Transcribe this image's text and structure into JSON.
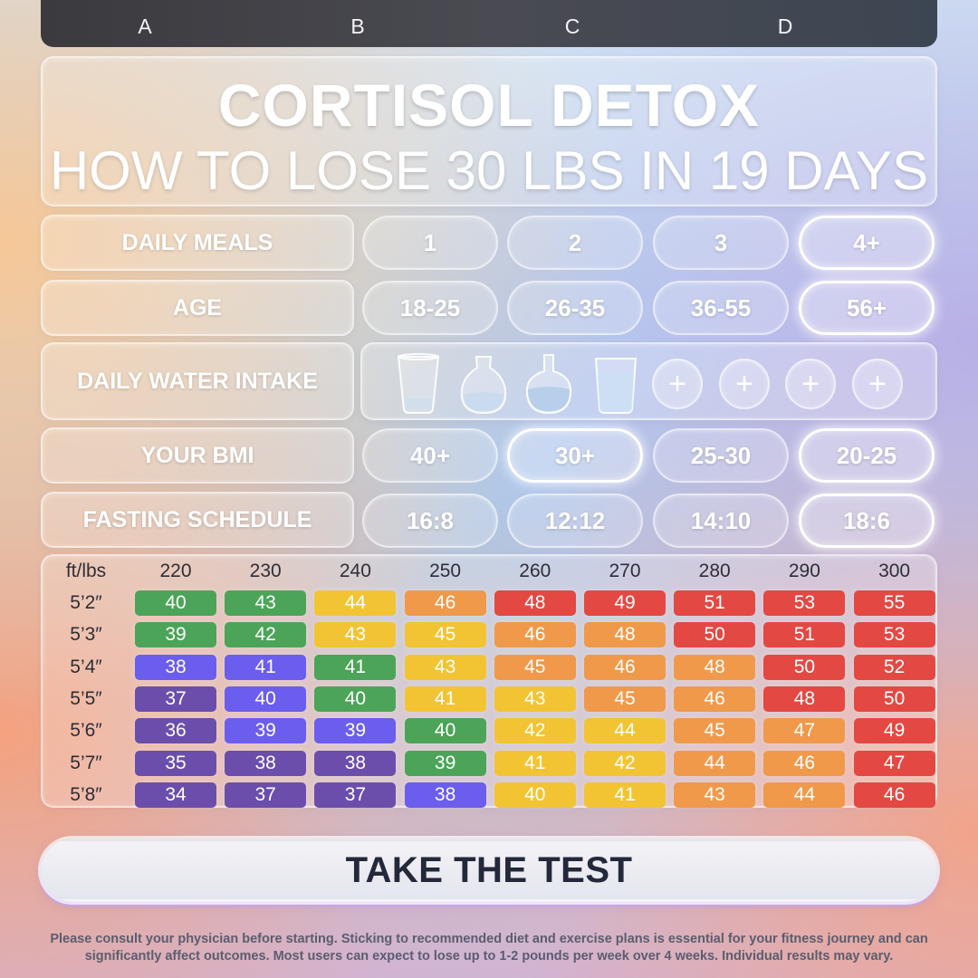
{
  "column_letters": [
    "A",
    "B",
    "C",
    "D"
  ],
  "title": {
    "main": "CORTISOL DETOX",
    "sub": "HOW TO LOSE 30 LBS IN 19 DAYS"
  },
  "rows": {
    "daily_meals": {
      "label": "DAILY MEALS",
      "options": [
        "1",
        "2",
        "3",
        "4+"
      ],
      "selected": "4+"
    },
    "age": {
      "label": "AGE",
      "options": [
        "18-25",
        "26-35",
        "36-55",
        "56+"
      ],
      "selected": "56+"
    },
    "water": {
      "label": "DAILY WATER INTAKE",
      "vessels": [
        "empty-glass-icon",
        "carafe-icon",
        "round-flask-icon",
        "water-glass-icon"
      ],
      "add_buttons": [
        "+",
        "+",
        "+",
        "+"
      ]
    },
    "bmi": {
      "label": "YOUR BMI",
      "options": [
        "40+",
        "30+",
        "25-30",
        "20-25"
      ],
      "selected": [
        "30+",
        "20-25"
      ]
    },
    "fasting": {
      "label": "FASTING SCHEDULE",
      "options": [
        "16:8",
        "12:12",
        "14:10",
        "18:6"
      ],
      "selected": "18:6"
    }
  },
  "bmi_table": {
    "corner": "ft/lbs",
    "weights": [
      "220",
      "230",
      "240",
      "250",
      "260",
      "270",
      "280",
      "290",
      "300"
    ],
    "heights": [
      "5’2″",
      "5’3″",
      "5’4″",
      "5’5″",
      "5’6″",
      "5’7″",
      "5’8″"
    ],
    "values": [
      [
        "40",
        "43",
        "44",
        "46",
        "48",
        "49",
        "51",
        "53",
        "55"
      ],
      [
        "39",
        "42",
        "43",
        "45",
        "46",
        "48",
        "50",
        "51",
        "53"
      ],
      [
        "38",
        "41",
        "41",
        "43",
        "45",
        "46",
        "48",
        "50",
        "52"
      ],
      [
        "37",
        "40",
        "40",
        "41",
        "43",
        "45",
        "46",
        "48",
        "50"
      ],
      [
        "36",
        "39",
        "39",
        "40",
        "42",
        "44",
        "45",
        "47",
        "49"
      ],
      [
        "35",
        "38",
        "38",
        "39",
        "41",
        "42",
        "44",
        "46",
        "47"
      ],
      [
        "34",
        "37",
        "37",
        "38",
        "40",
        "41",
        "43",
        "44",
        "46"
      ]
    ],
    "colors": {
      "deep_purple": "#6a4fa8",
      "indigo": "#6b5ee8",
      "green": "#4fa35a",
      "yellow": "#f0c43a",
      "orange": "#ec9a4e",
      "red": "#de4a44"
    },
    "color_grid": [
      [
        "green",
        "green",
        "yellow",
        "orange",
        "red",
        "red",
        "red",
        "red",
        "red"
      ],
      [
        "green",
        "green",
        "yellow",
        "yellow",
        "orange",
        "orange",
        "red",
        "red",
        "red"
      ],
      [
        "indigo",
        "indigo",
        "green",
        "yellow",
        "orange",
        "orange",
        "orange",
        "red",
        "red"
      ],
      [
        "deep_purple",
        "indigo",
        "green",
        "yellow",
        "yellow",
        "orange",
        "orange",
        "red",
        "red"
      ],
      [
        "deep_purple",
        "indigo",
        "indigo",
        "green",
        "yellow",
        "yellow",
        "orange",
        "orange",
        "red"
      ],
      [
        "deep_purple",
        "deep_purple",
        "deep_purple",
        "green",
        "yellow",
        "yellow",
        "orange",
        "orange",
        "red"
      ],
      [
        "deep_purple",
        "deep_purple",
        "deep_purple",
        "indigo",
        "yellow",
        "yellow",
        "orange",
        "orange",
        "red"
      ]
    ]
  },
  "cta": {
    "label": "TAKE THE TEST"
  },
  "disclaimer": "Please consult your physician before starting. Sticking to recommended diet and exercise plans is essential for your fitness journey and can significantly affect outcomes. Most users can expect to lose up to 1-2 pounds per week over 4 weeks. Individual results may vary."
}
